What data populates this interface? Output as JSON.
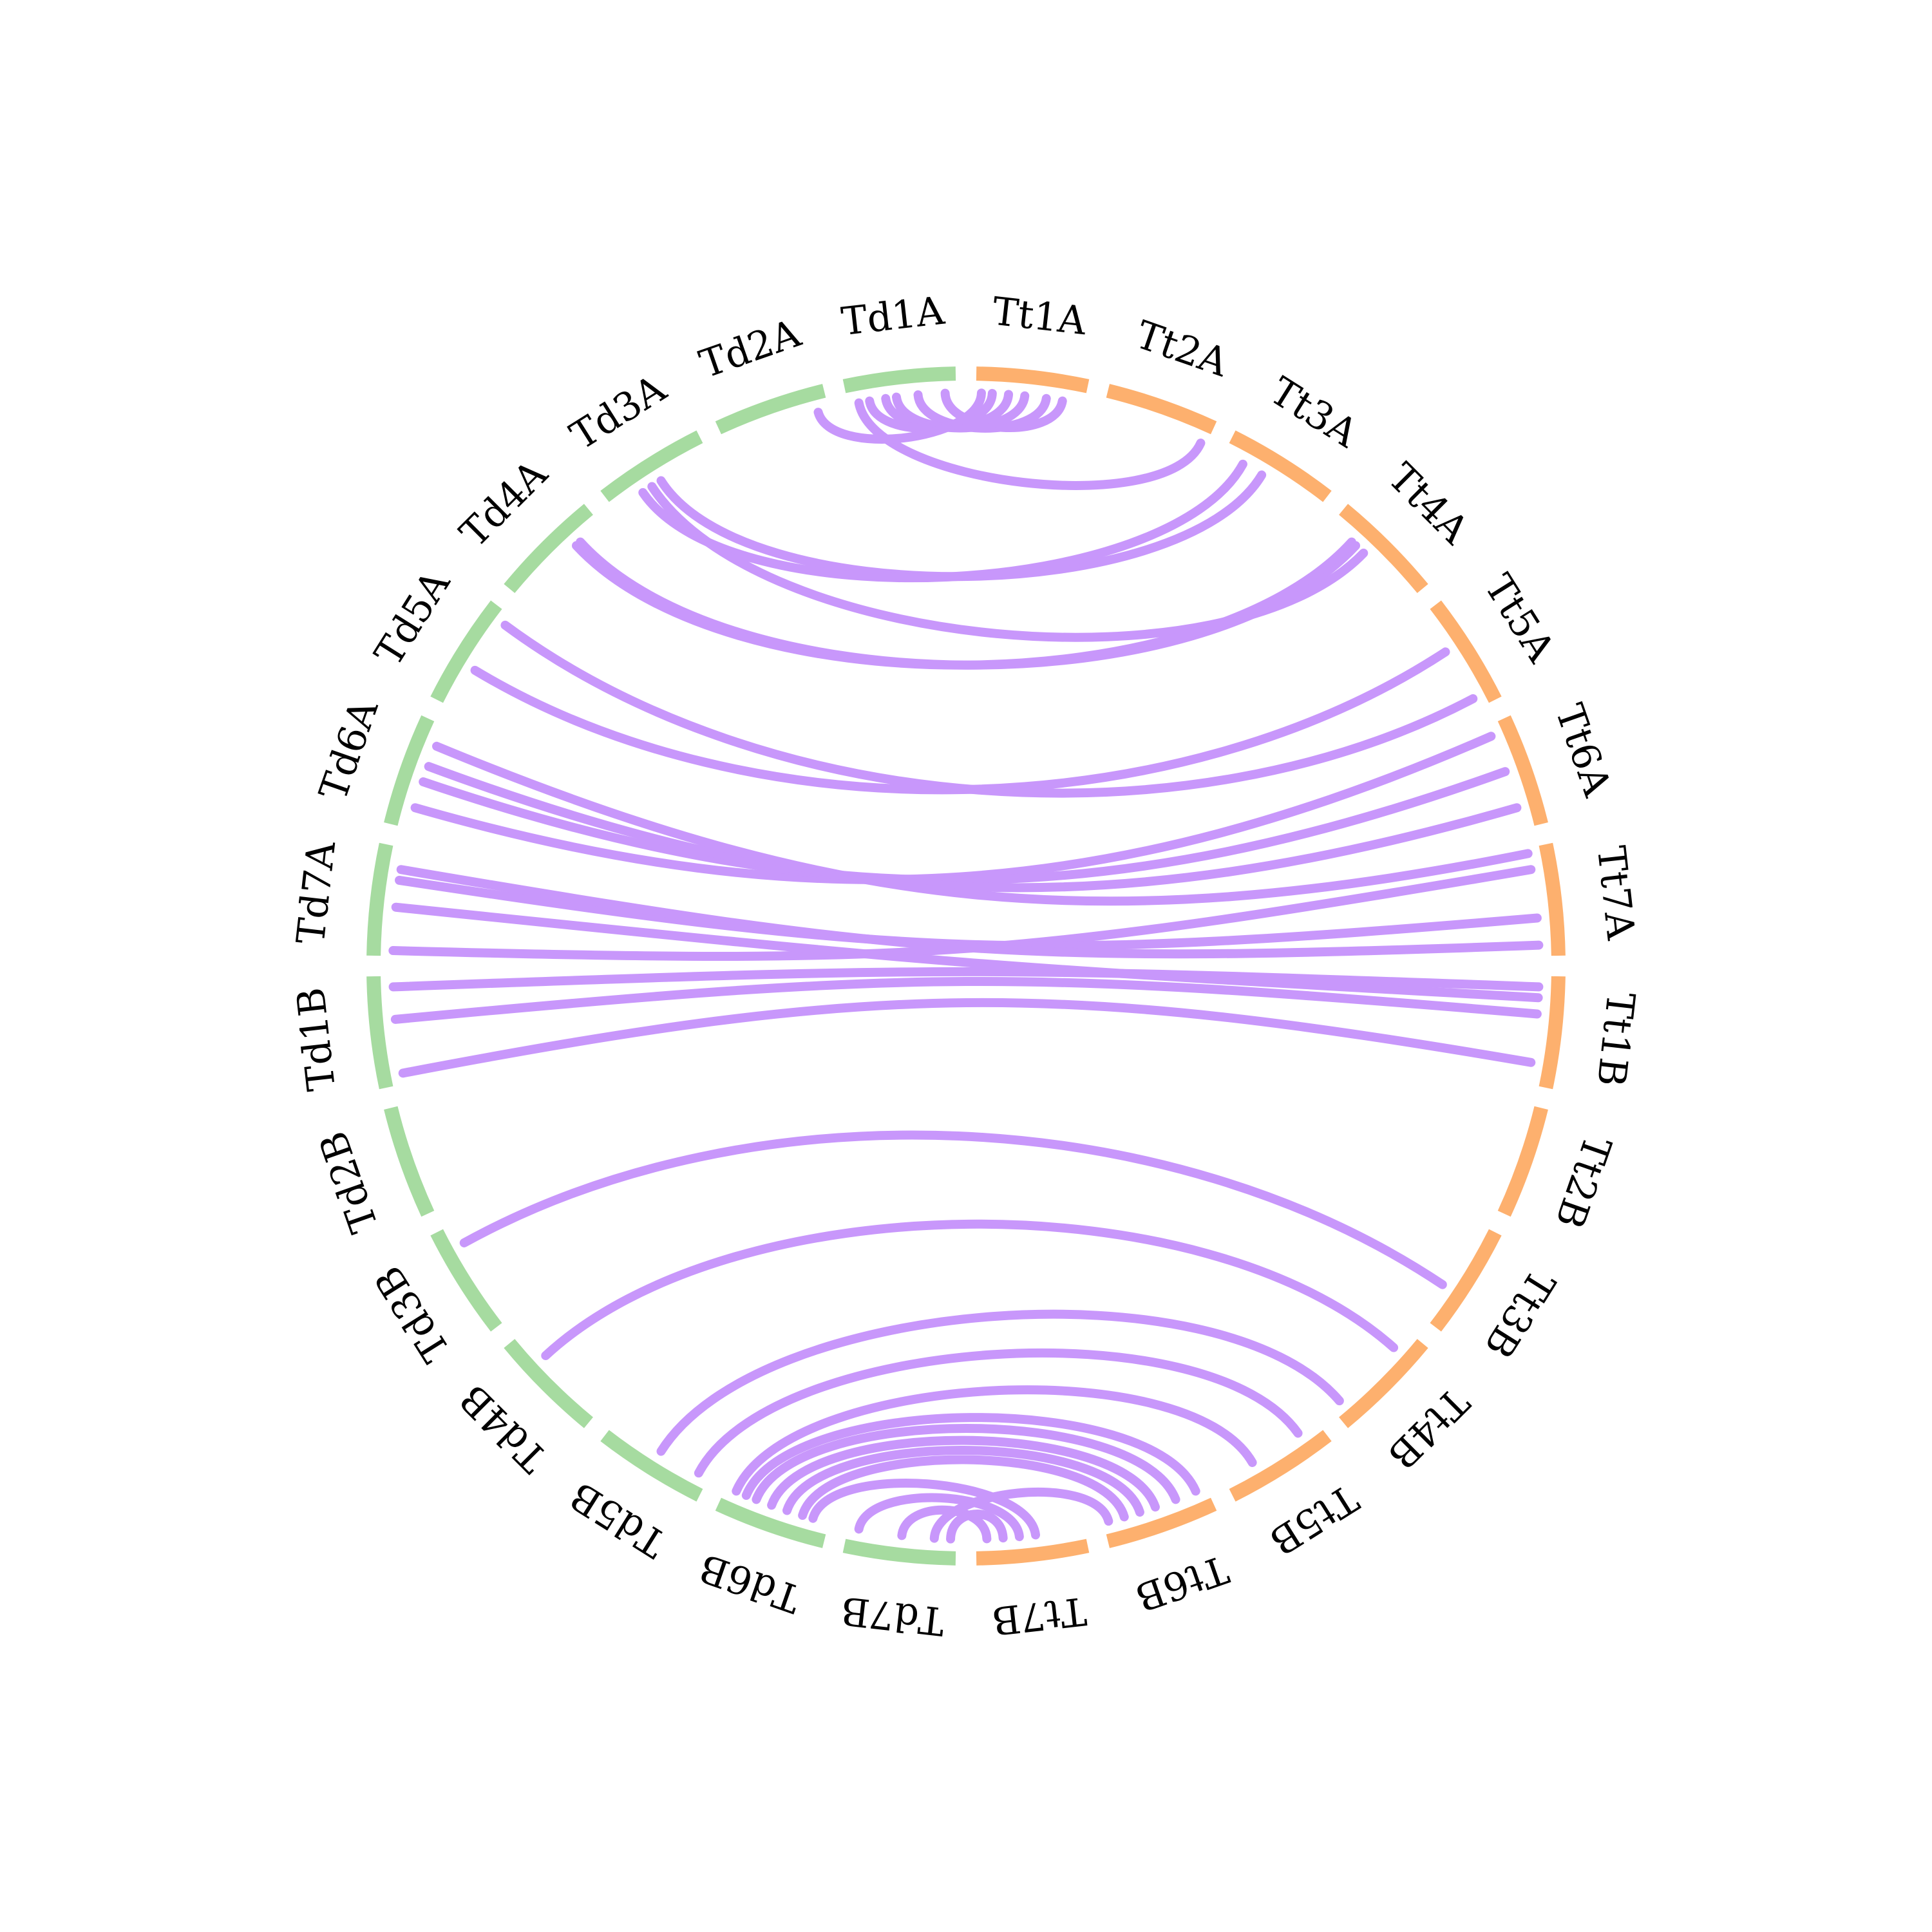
{
  "colors": {
    "group_td": "#a6dba0",
    "group_tt": "#fdb06e",
    "link": "#c897fb",
    "background": "#ffffff"
  },
  "segments": [
    {
      "label": "Td1A",
      "group": "td"
    },
    {
      "label": "Td2A",
      "group": "td"
    },
    {
      "label": "Td3A",
      "group": "td"
    },
    {
      "label": "Td4A",
      "group": "td"
    },
    {
      "label": "Td5A",
      "group": "td"
    },
    {
      "label": "Td6A",
      "group": "td"
    },
    {
      "label": "Td7A",
      "group": "td"
    },
    {
      "label": "Td1B",
      "group": "td"
    },
    {
      "label": "Td2B",
      "group": "td"
    },
    {
      "label": "Td3B",
      "group": "td"
    },
    {
      "label": "Td4B",
      "group": "td"
    },
    {
      "label": "Td5B",
      "group": "td"
    },
    {
      "label": "Td6B",
      "group": "td"
    },
    {
      "label": "Td7B",
      "group": "td"
    },
    {
      "label": "Tt7B",
      "group": "tt"
    },
    {
      "label": "Tt6B",
      "group": "tt"
    },
    {
      "label": "Tt5B",
      "group": "tt"
    },
    {
      "label": "Tt4B",
      "group": "tt"
    },
    {
      "label": "Tt3B",
      "group": "tt"
    },
    {
      "label": "Tt2B",
      "group": "tt"
    },
    {
      "label": "Tt1B",
      "group": "tt"
    },
    {
      "label": "Tt7A",
      "group": "tt"
    },
    {
      "label": "Tt6A",
      "group": "tt"
    },
    {
      "label": "Tt5A",
      "group": "tt"
    },
    {
      "label": "Tt4A",
      "group": "tt"
    },
    {
      "label": "Tt3A",
      "group": "tt"
    },
    {
      "label": "Tt2A",
      "group": "tt"
    },
    {
      "label": "Tt1A",
      "group": "tt"
    }
  ],
  "links": [
    {
      "from": "Td1A",
      "from_pos": 0.1,
      "to": "Tt1A",
      "to_pos": 0.2
    },
    {
      "from": "Td1A",
      "from_pos": 0.35,
      "to": "Tt1A",
      "to_pos": 0.35
    },
    {
      "from": "Td1A",
      "from_pos": 0.55,
      "to": "Tt1A",
      "to_pos": 0.55
    },
    {
      "from": "Td1A",
      "from_pos": 0.65,
      "to": "Tt1A",
      "to_pos": 0.7
    },
    {
      "from": "Td1A",
      "from_pos": 0.8,
      "to": "Tt1A",
      "to_pos": 0.85
    },
    {
      "from": "Td1A",
      "from_pos": 0.9,
      "to": "Tt2A",
      "to_pos": 0.05
    },
    {
      "from": "Td2A",
      "from_pos": 0.1,
      "to": "Tt1A",
      "to_pos": 0.95
    },
    {
      "from": "Td3A",
      "from_pos": 0.5,
      "to": "Tt3A",
      "to_pos": 0.6
    },
    {
      "from": "Td3A",
      "from_pos": 0.7,
      "to": "Tt3A",
      "to_pos": 0.8
    },
    {
      "from": "Td3A",
      "from_pos": 0.6,
      "to": "Tt4A",
      "to_pos": 0.6
    },
    {
      "from": "Td4A",
      "from_pos": 0.25,
      "to": "Tt4A",
      "to_pos": 0.7
    },
    {
      "from": "Td4A",
      "from_pos": 0.3,
      "to": "Tt4A",
      "to_pos": 0.75
    },
    {
      "from": "Td5A",
      "from_pos": 0.6,
      "to": "Tt5A",
      "to_pos": 0.6
    },
    {
      "from": "Td5A",
      "from_pos": 0.1,
      "to": "Tt5A",
      "to_pos": 0.1
    },
    {
      "from": "Td6A",
      "from_pos": 0.8,
      "to": "Tt6A",
      "to_pos": 0.9
    },
    {
      "from": "Td6A",
      "from_pos": 0.55,
      "to": "Tt6A",
      "to_pos": 0.55
    },
    {
      "from": "Td6A",
      "from_pos": 0.4,
      "to": "Tt6A",
      "to_pos": 0.2
    },
    {
      "from": "Td6A",
      "from_pos": 0.2,
      "to": "Tt7A",
      "to_pos": 0.95
    },
    {
      "from": "Td7A",
      "from_pos": 0.95,
      "to": "Tt7A",
      "to_pos": 0.8
    },
    {
      "from": "Td7A",
      "from_pos": 0.55,
      "to": "Tt1B",
      "to_pos": 0.8
    },
    {
      "from": "Td7A",
      "from_pos": 0.3,
      "to": "Tt7A",
      "to_pos": 0.35
    },
    {
      "from": "Td7A",
      "from_pos": 0.2,
      "to": "Tt7A",
      "to_pos": 0.1
    },
    {
      "from": "Td1B",
      "from_pos": 0.9,
      "to": "Tt1B",
      "to_pos": 0.2
    },
    {
      "from": "Td1B",
      "from_pos": 0.4,
      "to": "Tt1B",
      "to_pos": 0.65
    },
    {
      "from": "Td1B",
      "from_pos": 0.1,
      "to": "Tt1B",
      "to_pos": 0.9
    },
    {
      "from": "Td3B",
      "from_pos": 0.2,
      "to": "Tt3B",
      "to_pos": 0.35
    },
    {
      "from": "Td4B",
      "from_pos": 0.3,
      "to": "Tt4B",
      "to_pos": 0.8
    },
    {
      "from": "Td5B",
      "from_pos": 0.5,
      "to": "Tt4B",
      "to_pos": 0.1
    },
    {
      "from": "Td5B",
      "from_pos": 0.9,
      "to": "Tt5B",
      "to_pos": 0.8
    },
    {
      "from": "Td6B",
      "from_pos": 0.1,
      "to": "Tt5B",
      "to_pos": 0.3
    },
    {
      "from": "Td6B",
      "from_pos": 0.2,
      "to": "Tt6B",
      "to_pos": 0.9
    },
    {
      "from": "Td6B",
      "from_pos": 0.3,
      "to": "Tt6B",
      "to_pos": 0.7
    },
    {
      "from": "Td6B",
      "from_pos": 0.45,
      "to": "Tt6B",
      "to_pos": 0.5
    },
    {
      "from": "Td6B",
      "from_pos": 0.6,
      "to": "Tt6B",
      "to_pos": 0.35
    },
    {
      "from": "Td6B",
      "from_pos": 0.75,
      "to": "Tt6B",
      "to_pos": 0.2
    },
    {
      "from": "Td6B",
      "from_pos": 0.85,
      "to": "Tt7B",
      "to_pos": 0.55
    },
    {
      "from": "Td7B",
      "from_pos": 0.1,
      "to": "Tt7B",
      "to_pos": 0.4
    },
    {
      "from": "Td7B",
      "from_pos": 0.5,
      "to": "Tt7B",
      "to_pos": 0.1
    },
    {
      "from": "Td7B",
      "from_pos": 0.8,
      "to": "Tt6B",
      "to_pos": 0.05
    },
    {
      "from": "Td7B",
      "from_pos": 0.95,
      "to": "Tt7B",
      "to_pos": 0.25
    }
  ]
}
